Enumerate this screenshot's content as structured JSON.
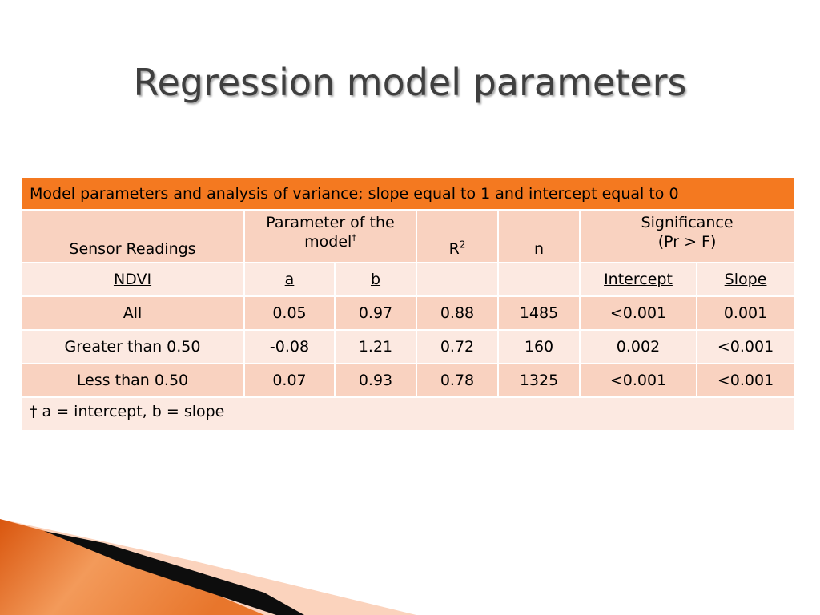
{
  "slide": {
    "title": "Regression model parameters"
  },
  "table": {
    "caption": "Model parameters and analysis of variance; slope equal to 1 and intercept equal to 0",
    "headers": {
      "sensor_readings": "Sensor Readings",
      "parameter_line1": "Parameter of the",
      "parameter_line2": "model",
      "dagger": "†",
      "r_base": "R",
      "r_sup": "2",
      "n": "n",
      "significance_line1": "Significance",
      "significance_line2": "(Pr > F)"
    },
    "subheaders": {
      "ndvi": "NDVI",
      "a": "a",
      "b": "b",
      "intercept": "Intercept",
      "slope": "Slope"
    },
    "rows": [
      {
        "label": "All",
        "a": "0.05",
        "b": "0.97",
        "r2": "0.88",
        "n": "1485",
        "intercept": "<0.001",
        "slope": "0.001"
      },
      {
        "label": "Greater than 0.50",
        "a": "-0.08",
        "b": "1.21",
        "r2": "0.72",
        "n": "160",
        "intercept": "0.002",
        "slope": "<0.001"
      },
      {
        "label": "Less than 0.50",
        "a": "0.07",
        "b": "0.93",
        "r2": "0.78",
        "n": "1325",
        "intercept": "<0.001",
        "slope": "<0.001"
      }
    ],
    "footnote": "† a = intercept, b = slope"
  },
  "colors": {
    "caption_orange": "#f47920",
    "header_peach": "#f9d2c0",
    "row_light": "#fce9e1",
    "title_gray": "#3f3f3f"
  }
}
